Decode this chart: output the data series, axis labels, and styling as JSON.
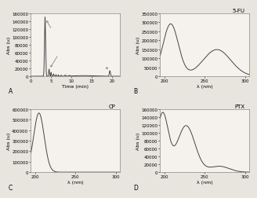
{
  "fig_width": 3.28,
  "fig_height": 2.53,
  "background": "#e8e4de",
  "panel_A": {
    "label": "A",
    "xlabel": "Time (min)",
    "ylabel": "Abs (u)",
    "xlim": [
      0,
      22
    ],
    "ylim": [
      0,
      160000
    ],
    "yticks": [
      0,
      20000,
      40000,
      60000,
      80000,
      100000,
      120000,
      140000,
      160000
    ],
    "xticks": [
      0,
      5,
      10,
      15,
      20
    ]
  },
  "panel_B": {
    "label": "B",
    "title": "5-FU",
    "xlabel": "λ (nm)",
    "ylabel": "Abs (u)",
    "xlim": [
      195,
      305
    ],
    "ylim": [
      0,
      350000
    ],
    "yticks": [
      0,
      50000,
      100000,
      150000,
      200000,
      250000,
      300000,
      350000
    ],
    "xticks": [
      200,
      250,
      300
    ]
  },
  "panel_C": {
    "label": "C",
    "title": "CP",
    "xlabel": "λ (nm)",
    "ylabel": "Abs (u)",
    "xlim": [
      195,
      305
    ],
    "ylim": [
      0,
      600000
    ],
    "yticks": [
      0,
      100000,
      200000,
      300000,
      400000,
      500000,
      600000
    ],
    "xticks": [
      200,
      250,
      300
    ]
  },
  "panel_D": {
    "label": "D",
    "title": "PTX",
    "xlabel": "λ (nm)",
    "ylabel": "Abs (u)",
    "xlim": [
      195,
      305
    ],
    "ylim": [
      0,
      160000
    ],
    "yticks": [
      0,
      20000,
      40000,
      60000,
      80000,
      100000,
      120000,
      140000,
      160000
    ],
    "xticks": [
      200,
      250,
      300
    ]
  },
  "line_color": "#444444",
  "line_width": 0.7,
  "tick_fontsize": 4.0,
  "label_fontsize": 4.5,
  "title_fontsize": 5.0,
  "panel_label_fontsize": 5.5,
  "box_facecolor": "#f5f2ee"
}
